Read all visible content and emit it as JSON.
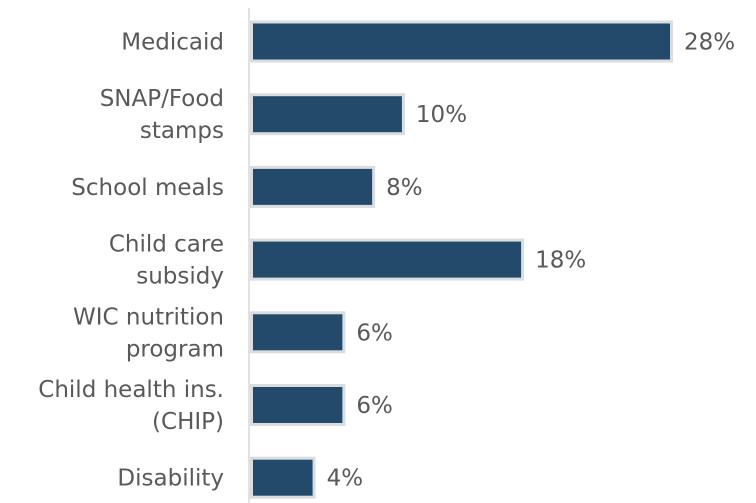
{
  "chart_data": {
    "type": "bar",
    "orientation": "horizontal",
    "categories": [
      [
        "Medicaid"
      ],
      [
        "SNAP/Food",
        "stamps"
      ],
      [
        "School meals"
      ],
      [
        "Child care",
        "subsidy"
      ],
      [
        "WIC nutrition",
        "program"
      ],
      [
        "Child health ins.",
        "(CHIP)"
      ],
      [
        "Disability"
      ]
    ],
    "values": [
      28,
      10,
      8,
      18,
      6,
      6,
      4
    ],
    "value_labels": [
      "28%",
      "10%",
      "8%",
      "18%",
      "6%",
      "6%",
      "4%"
    ],
    "xlim": [
      0,
      28
    ],
    "grid": false,
    "legend": "none",
    "bar_color": "#234A6B",
    "bar_outline_color": "#D9DDE0",
    "axis_color": "#D9D9D9",
    "text_color": "#595959"
  }
}
